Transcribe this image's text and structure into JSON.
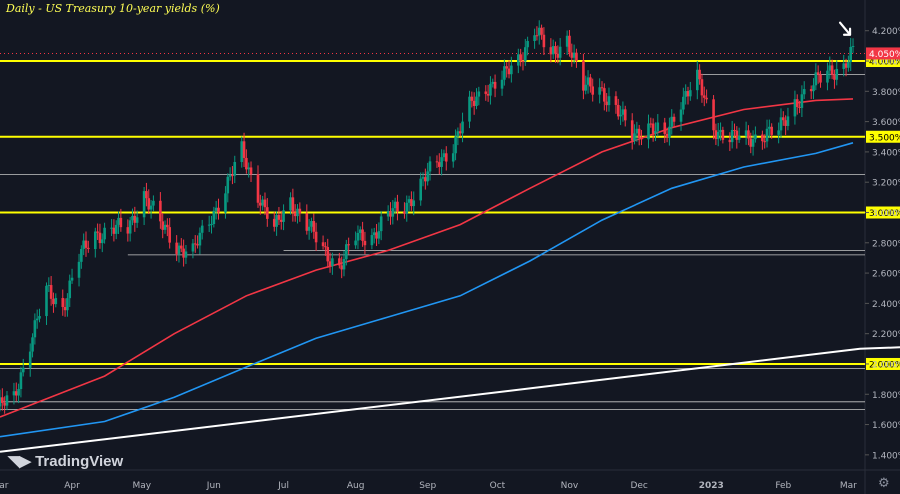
{
  "chart_data": {
    "type": "candlestick",
    "title": "Daily - US Treasury 10-year yields (%)",
    "ylim": [
      1.3,
      4.35
    ],
    "y_ticks": [
      "4.200%",
      "4.000%",
      "3.800%",
      "3.600%",
      "3.400%",
      "3.200%",
      "3.000%",
      "2.800%",
      "2.600%",
      "2.400%",
      "2.200%",
      "2.000%",
      "1.800%",
      "1.600%",
      "1.400%"
    ],
    "x_ticks": [
      "Mar",
      "Apr",
      "May",
      "Jun",
      "Jul",
      "Aug",
      "Sep",
      "Oct",
      "Nov",
      "Dec",
      "2023",
      "Feb",
      "Mar"
    ],
    "x_range": [
      "2022-03-01",
      "2023-03-06"
    ],
    "last_price_label": "4.050%",
    "last_price": 4.05,
    "horizontal_levels": [
      {
        "value": 4.0,
        "label": "4.000%",
        "style": "yellow"
      },
      {
        "value": 3.5,
        "label": "3.500%",
        "style": "yellow"
      },
      {
        "value": 3.0,
        "label": "3.000%",
        "style": "yellow"
      },
      {
        "value": 2.0,
        "label": "2.000%",
        "style": "yellow"
      },
      {
        "value": 3.91,
        "style": "thin"
      },
      {
        "value": 3.25,
        "style": "thin"
      },
      {
        "value": 2.75,
        "style": "thin"
      },
      {
        "value": 2.72,
        "style": "thin"
      },
      {
        "value": 1.97,
        "style": "thin"
      },
      {
        "value": 1.75,
        "style": "thin"
      },
      {
        "value": 1.7,
        "style": "thin"
      },
      {
        "value": 4.05,
        "style": "dotted"
      }
    ],
    "series": [
      {
        "name": "",
        "kind": "ohlc_close",
        "points": [
          [
            "2022-03-01",
            1.72
          ],
          [
            "2022-03-07",
            1.77
          ],
          [
            "2022-03-14",
            2.15
          ],
          [
            "2022-03-21",
            2.47
          ],
          [
            "2022-03-28",
            2.38
          ],
          [
            "2022-04-04",
            2.7
          ],
          [
            "2022-04-11",
            2.85
          ],
          [
            "2022-04-18",
            2.9
          ],
          [
            "2022-04-25",
            2.88
          ],
          [
            "2022-05-02",
            3.13
          ],
          [
            "2022-05-09",
            2.92
          ],
          [
            "2022-05-16",
            2.78
          ],
          [
            "2022-05-23",
            2.74
          ],
          [
            "2022-05-30",
            2.94
          ],
          [
            "2022-06-06",
            3.16
          ],
          [
            "2022-06-13",
            3.4
          ],
          [
            "2022-06-20",
            3.13
          ],
          [
            "2022-06-27",
            2.88
          ],
          [
            "2022-07-04",
            3.08
          ],
          [
            "2022-07-11",
            2.92
          ],
          [
            "2022-07-18",
            2.75
          ],
          [
            "2022-07-25",
            2.65
          ],
          [
            "2022-08-01",
            2.83
          ],
          [
            "2022-08-08",
            2.85
          ],
          [
            "2022-08-15",
            2.98
          ],
          [
            "2022-08-22",
            3.04
          ],
          [
            "2022-08-29",
            3.19
          ],
          [
            "2022-09-05",
            3.32
          ],
          [
            "2022-09-12",
            3.45
          ],
          [
            "2022-09-19",
            3.69
          ],
          [
            "2022-09-26",
            3.83
          ],
          [
            "2022-10-03",
            3.88
          ],
          [
            "2022-10-10",
            4.0
          ],
          [
            "2022-10-17",
            4.22
          ],
          [
            "2022-10-24",
            4.02
          ],
          [
            "2022-10-31",
            4.16
          ],
          [
            "2022-11-07",
            3.82
          ],
          [
            "2022-11-14",
            3.83
          ],
          [
            "2022-11-21",
            3.68
          ],
          [
            "2022-11-28",
            3.51
          ],
          [
            "2022-12-05",
            3.58
          ],
          [
            "2022-12-12",
            3.48
          ],
          [
            "2022-12-19",
            3.75
          ],
          [
            "2022-12-26",
            3.88
          ],
          [
            "2023-01-02",
            3.56
          ],
          [
            "2023-01-09",
            3.5
          ],
          [
            "2023-01-16",
            3.48
          ],
          [
            "2023-01-23",
            3.52
          ],
          [
            "2023-01-30",
            3.53
          ],
          [
            "2023-02-06",
            3.73
          ],
          [
            "2023-02-13",
            3.82
          ],
          [
            "2023-02-20",
            3.94
          ],
          [
            "2023-02-27",
            3.96
          ],
          [
            "2023-03-03",
            4.05
          ]
        ]
      },
      {
        "name": "",
        "kind": "ma",
        "color": "#f23645",
        "points": [
          [
            "2022-03-01",
            1.65
          ],
          [
            "2022-04-15",
            1.92
          ],
          [
            "2022-05-15",
            2.2
          ],
          [
            "2022-06-15",
            2.45
          ],
          [
            "2022-07-15",
            2.62
          ],
          [
            "2022-08-15",
            2.75
          ],
          [
            "2022-09-15",
            2.92
          ],
          [
            "2022-10-15",
            3.16
          ],
          [
            "2022-11-15",
            3.4
          ],
          [
            "2022-12-15",
            3.56
          ],
          [
            "2023-01-15",
            3.68
          ],
          [
            "2023-02-15",
            3.74
          ],
          [
            "2023-03-03",
            3.75
          ]
        ]
      },
      {
        "name": "",
        "kind": "ma",
        "color": "#2196f3",
        "points": [
          [
            "2022-03-01",
            1.52
          ],
          [
            "2022-04-15",
            1.62
          ],
          [
            "2022-05-15",
            1.78
          ],
          [
            "2022-06-15",
            1.98
          ],
          [
            "2022-07-15",
            2.17
          ],
          [
            "2022-08-15",
            2.31
          ],
          [
            "2022-09-15",
            2.45
          ],
          [
            "2022-10-15",
            2.68
          ],
          [
            "2022-11-15",
            2.95
          ],
          [
            "2022-12-15",
            3.16
          ],
          [
            "2023-01-15",
            3.3
          ],
          [
            "2023-02-15",
            3.39
          ],
          [
            "2023-03-03",
            3.46
          ]
        ]
      },
      {
        "name": "",
        "kind": "trendline",
        "color": "#ffffff",
        "points": [
          [
            "2022-03-01",
            1.42
          ],
          [
            "2023-03-06",
            2.1
          ]
        ]
      }
    ]
  },
  "watermark": "TradingView"
}
